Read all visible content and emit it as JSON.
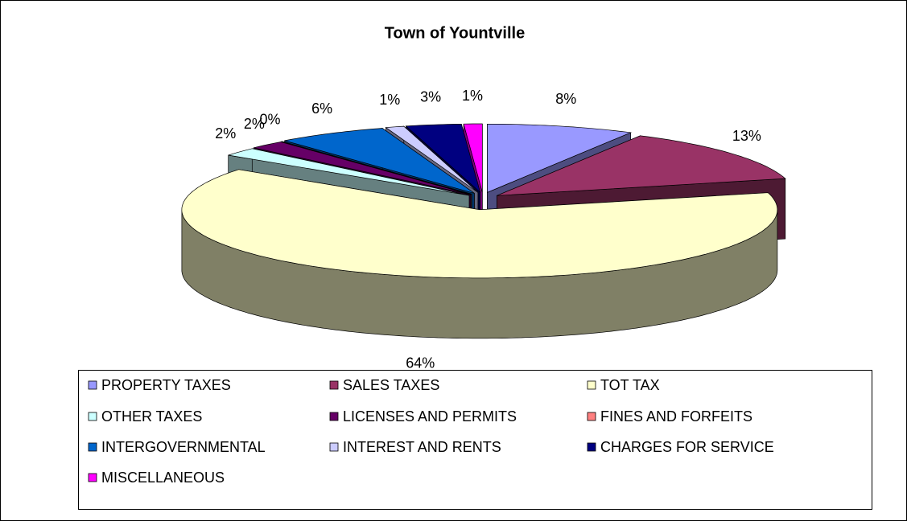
{
  "chart_data": {
    "type": "pie3d",
    "title": "Town of Yountville",
    "categories": [
      "PROPERTY TAXES",
      "SALES TAXES",
      "TOT TAX",
      "OTHER TAXES",
      "LICENSES AND PERMITS",
      "FINES AND FORFEITS",
      "INTERGOVERNMENTAL",
      "INTEREST AND RENTS",
      "CHARGES FOR SERVICE",
      "MISCELLANEOUS"
    ],
    "values": [
      8,
      13,
      64,
      2,
      2,
      0,
      6,
      1,
      3,
      1
    ],
    "value_labels": [
      "8%",
      "13%",
      "64%",
      "2%",
      "2%",
      "0%",
      "6%",
      "1%",
      "3%",
      "1%"
    ],
    "colors": [
      "#9999ff",
      "#993366",
      "#ffffcc",
      "#ccffff",
      "#660066",
      "#ff8080",
      "#0066cc",
      "#ccccff",
      "#000080",
      "#ff00ff"
    ],
    "legend": "bottom"
  }
}
